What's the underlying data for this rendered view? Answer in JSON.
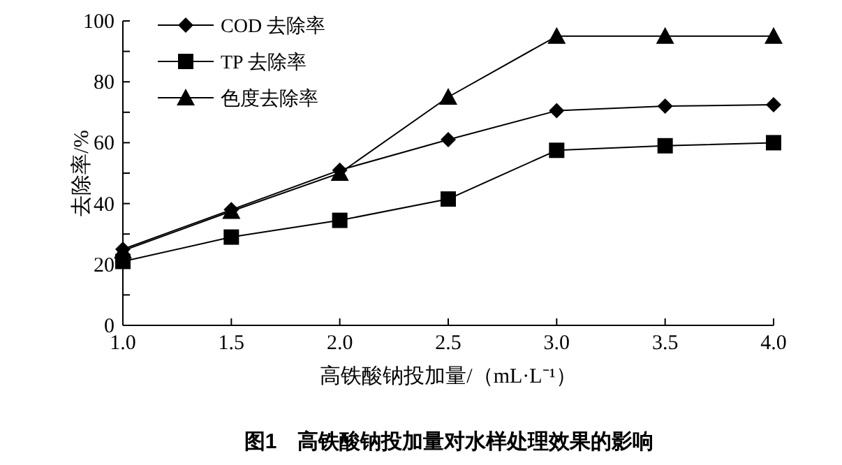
{
  "chart_data": {
    "type": "line",
    "ylabel": "去除率/%",
    "xlabel": "高铁酸钠投加量/（mL·L⁻¹）",
    "x": [
      1.0,
      1.5,
      2.0,
      2.5,
      3.0,
      3.5,
      4.0
    ],
    "series": [
      {
        "name": "COD 去除率",
        "color": "#000000",
        "marker": "diamond",
        "values": [
          25,
          38,
          51,
          61,
          70.5,
          72,
          72.5
        ]
      },
      {
        "name": "TP 去除率",
        "color": "#000000",
        "marker": "square",
        "values": [
          21,
          29,
          34.5,
          41.5,
          57.5,
          59,
          60
        ]
      },
      {
        "name": "色度去除率",
        "color": "#000000",
        "marker": "triangle",
        "values": [
          24.5,
          37.5,
          50,
          75,
          95,
          95,
          95
        ]
      }
    ],
    "xlim": [
      1.0,
      4.0
    ],
    "xticks": [
      {
        "value": 1.0,
        "label": "1.0"
      },
      {
        "value": 1.5,
        "label": "1.5"
      },
      {
        "value": 2.0,
        "label": "2.0"
      },
      {
        "value": 2.5,
        "label": "2.5"
      },
      {
        "value": 3.0,
        "label": "3.0"
      },
      {
        "value": 3.5,
        "label": "3.5"
      },
      {
        "value": 4.0,
        "label": "4.0"
      }
    ],
    "ylim": [
      0,
      100
    ],
    "yticks": [
      0,
      {
        "value": 10,
        "label": null
      },
      20,
      {
        "value": 30,
        "label": null
      },
      40,
      {
        "value": 50,
        "label": null
      },
      60,
      {
        "value": 70,
        "label": null
      },
      80,
      {
        "value": 90,
        "label": null
      },
      100
    ],
    "legend": "top left",
    "grid": false,
    "line_style": "solid",
    "annotations": [
      "图1　高铁酸钠投加量对水样处理效果的影响"
    ]
  }
}
